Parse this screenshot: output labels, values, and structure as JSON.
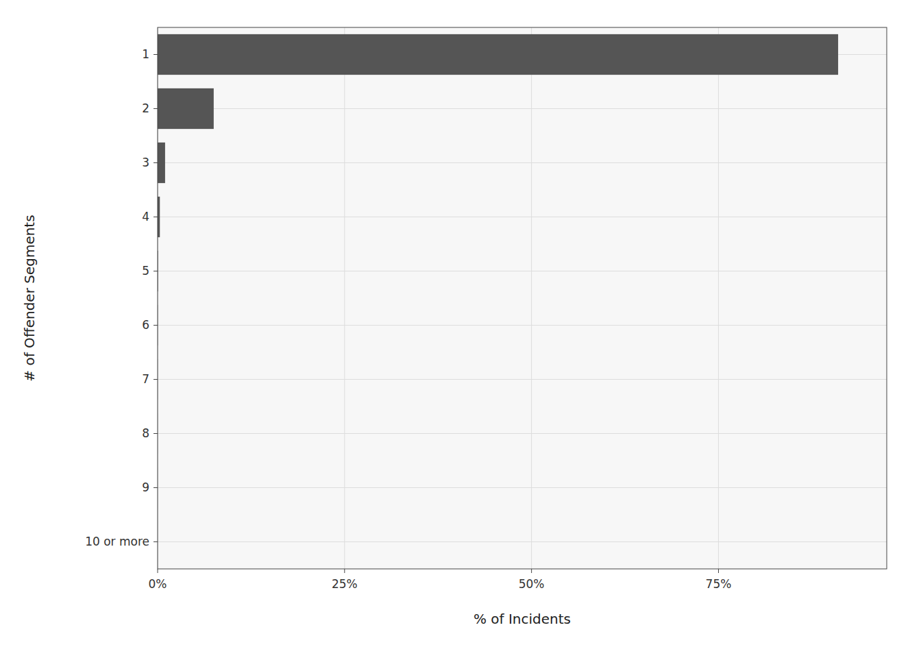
{
  "chart_data": {
    "type": "bar",
    "orientation": "horizontal",
    "xlabel": "% of Incidents",
    "ylabel": "# of Offender Segments",
    "categories": [
      "1",
      "2",
      "3",
      "4",
      "5",
      "6",
      "7",
      "8",
      "9",
      "10 or more"
    ],
    "values": [
      0.91,
      0.075,
      0.01,
      0.003,
      0.0005,
      0.0002,
      0.0001,
      5e-05,
      3e-05,
      2e-05
    ],
    "color": "#555555",
    "xlim": [
      0,
      0.975
    ],
    "xticks": [
      {
        "value": 0,
        "label": "0%"
      },
      {
        "value": 0.25,
        "label": "25%"
      },
      {
        "value": 0.5,
        "label": "50%"
      },
      {
        "value": 0.75,
        "label": "75%"
      }
    ],
    "grid": true
  }
}
